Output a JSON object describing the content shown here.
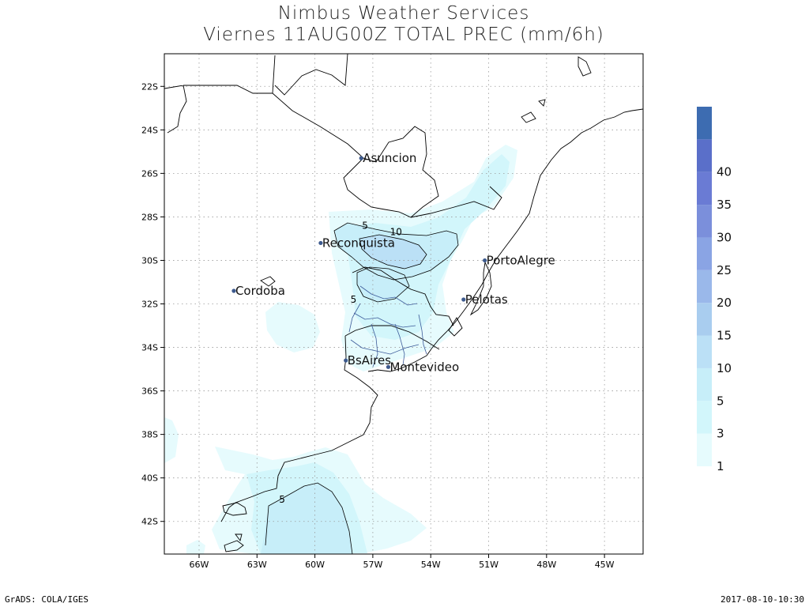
{
  "title": {
    "line1": "Nimbus Weather Services",
    "line2": "Viernes 11AUG00Z TOTAL PREC (mm/6h)"
  },
  "axes": {
    "lat_labels": [
      "22S",
      "24S",
      "26S",
      "28S",
      "30S",
      "32S",
      "34S",
      "36S",
      "38S",
      "40S",
      "42S"
    ],
    "lon_labels": [
      "66W",
      "63W",
      "60W",
      "57W",
      "54W",
      "51W",
      "48W",
      "45W"
    ],
    "lat_range": [
      -43.5,
      -20.5
    ],
    "lon_range": [
      -67.8,
      -43.0
    ],
    "grid": "dotted"
  },
  "cities": [
    {
      "name": "Asuncion",
      "lon": -57.6,
      "lat": -25.3
    },
    {
      "name": "Reconquista",
      "lon": -59.7,
      "lat": -29.2
    },
    {
      "name": "PortoAlegre",
      "lon": -51.2,
      "lat": -30.0
    },
    {
      "name": "Cordoba",
      "lon": -64.2,
      "lat": -31.4
    },
    {
      "name": "Pelotas",
      "lon": -52.3,
      "lat": -31.8
    },
    {
      "name": "BsAires",
      "lon": -58.4,
      "lat": -34.6
    },
    {
      "name": "Montevideo",
      "lon": -56.2,
      "lat": -34.9
    }
  ],
  "contour_labels": [
    {
      "text": "5",
      "lon": -57.4,
      "lat": -28.4
    },
    {
      "text": "10",
      "lon": -55.8,
      "lat": -28.7
    },
    {
      "text": "5",
      "lon": -58.0,
      "lat": -31.8
    },
    {
      "text": "5",
      "lon": -61.7,
      "lat": -41.0
    }
  ],
  "legend": {
    "levels": [
      "1",
      "3",
      "5",
      "10",
      "15",
      "20",
      "25",
      "30",
      "35",
      "40"
    ],
    "colors": [
      "#e6fbfd",
      "#d2f6fb",
      "#c7eef9",
      "#bbe0f6",
      "#a9cdef",
      "#9ab8ea",
      "#8aa4e4",
      "#7b8fdb",
      "#6a7bd4",
      "#5a6fc9",
      "#3d6cb1"
    ]
  },
  "footer": {
    "left": "GrADS: COLA/IGES",
    "right": "2017-08-10-10:30"
  }
}
